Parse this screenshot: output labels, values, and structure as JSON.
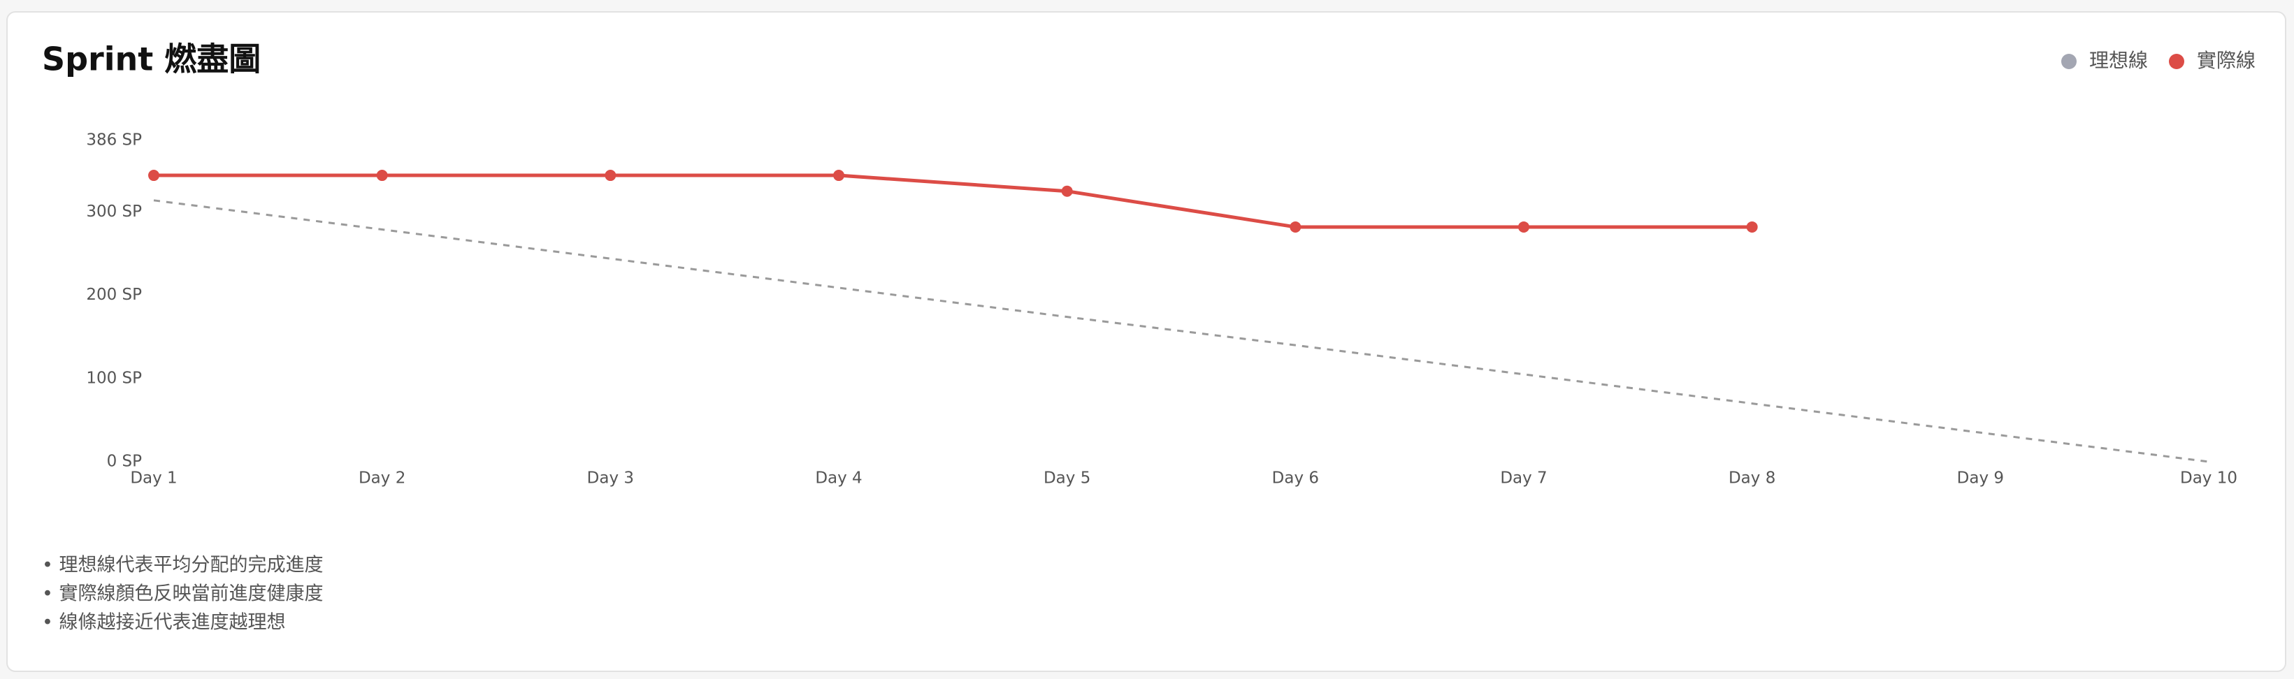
{
  "chart_data": {
    "type": "line",
    "title": "Sprint 燃盡圖",
    "categories": [
      "Day 1",
      "Day 2",
      "Day 3",
      "Day 4",
      "Day 5",
      "Day 6",
      "Day 7",
      "Day 8",
      "Day 9",
      "Day 10"
    ],
    "series": [
      {
        "name": "理想線",
        "color": "#9a9a9a",
        "legend_color": "#a3a6b2",
        "dashed": true,
        "markers": false,
        "values": [
          314,
          279,
          244,
          209,
          174,
          140,
          105,
          70,
          35,
          0
        ]
      },
      {
        "name": "實際線",
        "color": "#dc4c46",
        "legend_color": "#dc4c46",
        "dashed": false,
        "markers": true,
        "values": [
          344,
          344,
          344,
          344,
          325,
          282,
          282,
          282,
          null,
          null
        ]
      }
    ],
    "ylim": [
      0,
      386
    ],
    "yticks": [
      {
        "value": 0,
        "label": "0 SP"
      },
      {
        "value": 100,
        "label": "100 SP"
      },
      {
        "value": 200,
        "label": "200 SP"
      },
      {
        "value": 300,
        "label": "300 SP"
      },
      {
        "value": 386,
        "label": "386 SP"
      }
    ],
    "grid": false,
    "legend": "top-right"
  },
  "notes": [
    "• 理想線代表平均分配的完成進度",
    "• 實際線顏色反映當前進度健康度",
    "• 線條越接近代表進度越理想"
  ]
}
